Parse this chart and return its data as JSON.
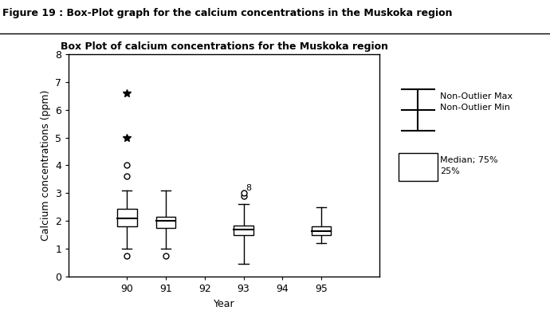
{
  "figure_title": "Figure 19 : Box-Plot graph for the calcium concentrations in the Muskoka region",
  "chart_title": "Box Plot of calcium concentrations for the Muskoka region",
  "xlabel": "Year",
  "ylabel": "Calcium concentrations (ppm)",
  "ylim": [
    0,
    8
  ],
  "yticks": [
    0,
    1,
    2,
    3,
    4,
    5,
    6,
    7,
    8
  ],
  "xtick_positions": [
    90,
    91,
    92,
    93,
    94,
    95
  ],
  "xtick_labels": [
    "90",
    "91",
    "92",
    "93",
    "94",
    "95"
  ],
  "boxes": [
    {
      "x": 90,
      "q1": 1.8,
      "median": 2.1,
      "q3": 2.45,
      "whisker_low": 1.0,
      "whisker_high": 3.1,
      "outliers_circle": [
        0.75,
        3.6,
        4.0
      ],
      "outliers_star": [
        5.0,
        6.6
      ]
    },
    {
      "x": 91,
      "q1": 1.75,
      "median": 2.0,
      "q3": 2.15,
      "whisker_low": 1.0,
      "whisker_high": 3.1,
      "outliers_circle": [
        0.75
      ],
      "outliers_star": []
    },
    {
      "x": 93,
      "q1": 1.5,
      "median": 1.7,
      "q3": 1.85,
      "whisker_low": 0.45,
      "whisker_high": 2.6,
      "outliers_circle": [
        2.9,
        3.0
      ],
      "outliers_star": [],
      "label_outlier": "8"
    },
    {
      "x": 95,
      "q1": 1.5,
      "median": 1.65,
      "q3": 1.8,
      "whisker_low": 1.2,
      "whisker_high": 2.5,
      "outliers_circle": [],
      "outliers_star": []
    }
  ],
  "box_width": 0.5,
  "box_color": "white",
  "box_edgecolor": "black",
  "median_color": "black",
  "whisker_color": "black",
  "cap_color": "black",
  "outlier_circle_color": "black",
  "outlier_star_color": "black",
  "background_color": "white",
  "xlim": [
    88.5,
    96.5
  ],
  "fig_title_fontsize": 9,
  "chart_title_fontsize": 9,
  "axis_label_fontsize": 9,
  "tick_fontsize": 9
}
